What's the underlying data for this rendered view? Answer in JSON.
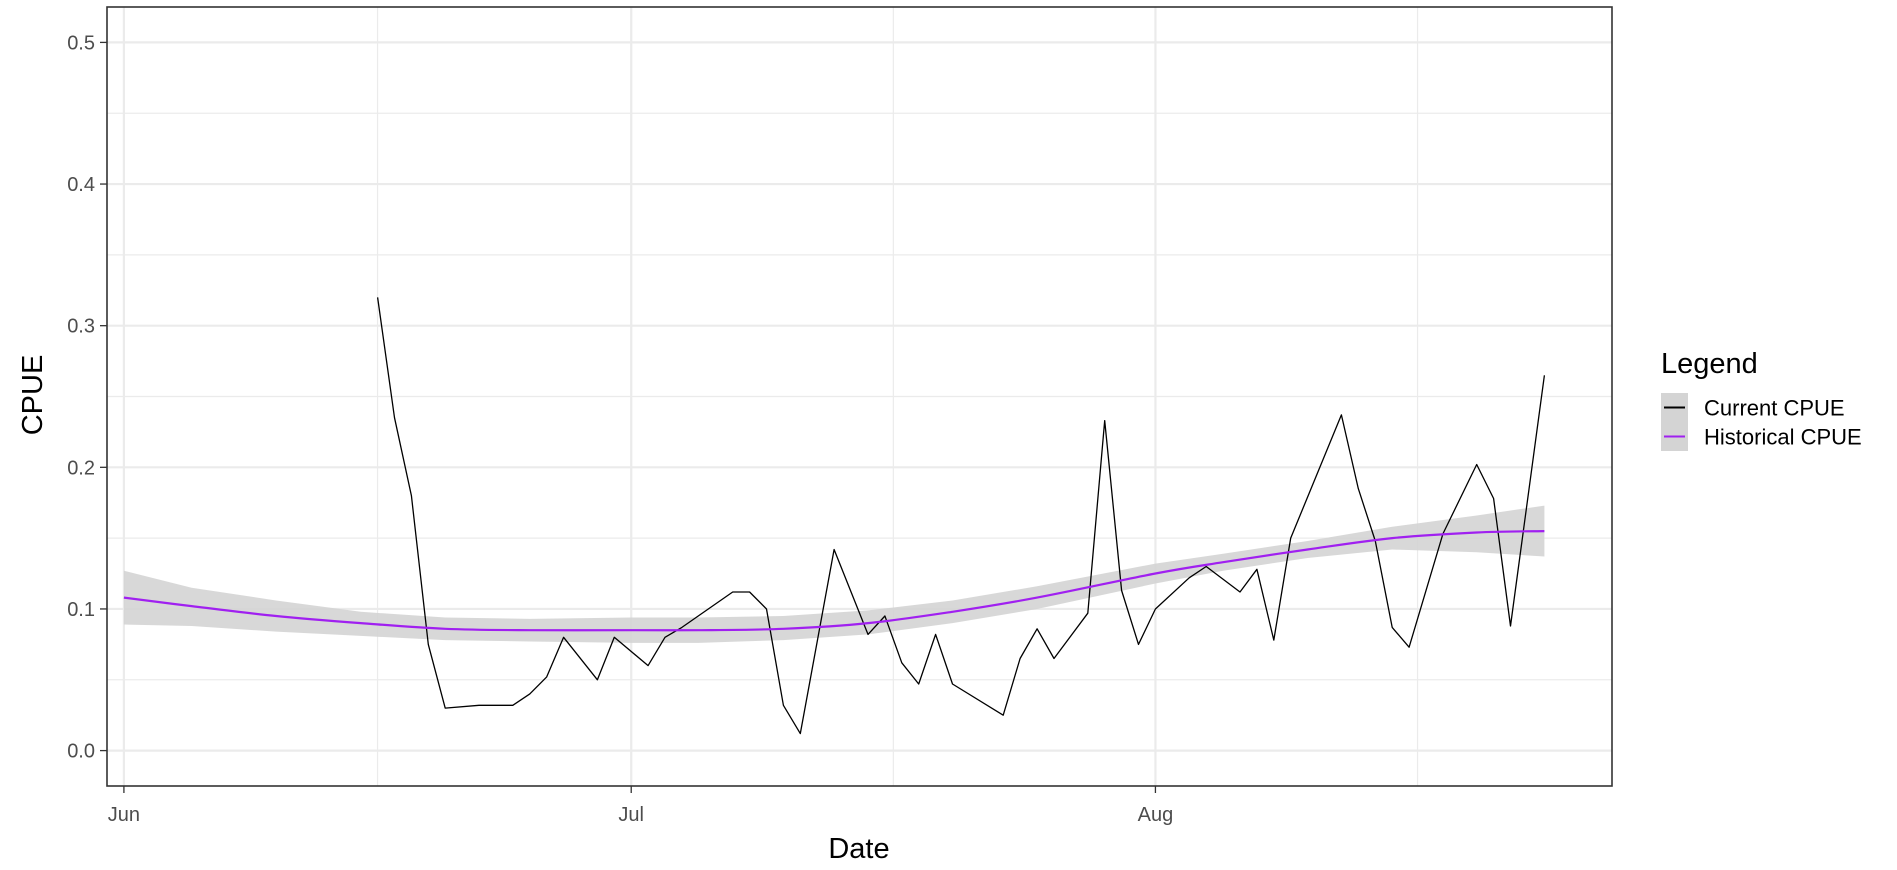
{
  "chart_data": {
    "type": "line",
    "title": "",
    "xlabel": "Date",
    "ylabel": "CPUE",
    "x_type": "date",
    "xlim": [
      "2019-05-31",
      "2019-08-28"
    ],
    "ylim": [
      -0.025,
      0.525
    ],
    "x_ticks": [
      {
        "date": "2019-06-01",
        "label": "Jun"
      },
      {
        "date": "2019-07-01",
        "label": "Jul"
      },
      {
        "date": "2019-08-01",
        "label": "Aug"
      }
    ],
    "y_ticks": [
      0.0,
      0.1,
      0.2,
      0.3,
      0.4,
      0.5
    ],
    "y_tick_labels": [
      "0.0",
      "0.1",
      "0.2",
      "0.3",
      "0.4",
      "0.5"
    ],
    "grid": true,
    "legend": {
      "title": "Legend",
      "placement": "right",
      "entries": [
        "Current CPUE",
        "Historical CPUE"
      ]
    },
    "colors": {
      "current": "#000000",
      "historical": "#a020f0",
      "ribbon": "#d4d4d4",
      "grid": "#ebebeb",
      "panel_border": "#333333"
    },
    "series": [
      {
        "name": "Current CPUE",
        "x": [
          "2019-06-16",
          "2019-06-17",
          "2019-06-18",
          "2019-06-19",
          "2019-06-20",
          "2019-06-22",
          "2019-06-24",
          "2019-06-25",
          "2019-06-26",
          "2019-06-27",
          "2019-06-29",
          "2019-06-30",
          "2019-07-02",
          "2019-07-03",
          "2019-07-04",
          "2019-07-07",
          "2019-07-08",
          "2019-07-09",
          "2019-07-10",
          "2019-07-11",
          "2019-07-13",
          "2019-07-15",
          "2019-07-16",
          "2019-07-17",
          "2019-07-18",
          "2019-07-19",
          "2019-07-20",
          "2019-07-23",
          "2019-07-24",
          "2019-07-25",
          "2019-07-26",
          "2019-07-28",
          "2019-07-29",
          "2019-07-30",
          "2019-07-31",
          "2019-08-01",
          "2019-08-03",
          "2019-08-04",
          "2019-08-06",
          "2019-08-07",
          "2019-08-08",
          "2019-08-09",
          "2019-08-12",
          "2019-08-13",
          "2019-08-14",
          "2019-08-15",
          "2019-08-16",
          "2019-08-18",
          "2019-08-20",
          "2019-08-21",
          "2019-08-22",
          "2019-08-24"
        ],
        "values": [
          0.32,
          0.235,
          0.18,
          0.075,
          0.03,
          0.032,
          0.032,
          0.04,
          0.052,
          0.08,
          0.05,
          0.08,
          0.06,
          0.08,
          0.087,
          0.112,
          0.112,
          0.1,
          0.032,
          0.012,
          0.142,
          0.082,
          0.095,
          0.062,
          0.047,
          0.082,
          0.047,
          0.025,
          0.065,
          0.086,
          0.065,
          0.097,
          0.233,
          0.113,
          0.075,
          0.1,
          0.122,
          0.13,
          0.112,
          0.128,
          0.078,
          0.15,
          0.237,
          0.185,
          0.148,
          0.087,
          0.073,
          0.153,
          0.202,
          0.178,
          0.088,
          0.265
        ]
      },
      {
        "name": "Historical CPUE",
        "x": [
          "2019-06-01",
          "2019-06-05",
          "2019-06-10",
          "2019-06-15",
          "2019-06-20",
          "2019-06-25",
          "2019-07-01",
          "2019-07-05",
          "2019-07-10",
          "2019-07-15",
          "2019-07-20",
          "2019-07-25",
          "2019-08-01",
          "2019-08-05",
          "2019-08-10",
          "2019-08-15",
          "2019-08-20",
          "2019-08-24"
        ],
        "values": [
          0.108,
          0.102,
          0.095,
          0.09,
          0.086,
          0.085,
          0.085,
          0.085,
          0.086,
          0.09,
          0.098,
          0.108,
          0.125,
          0.133,
          0.142,
          0.15,
          0.154,
          0.155
        ],
        "lower": [
          0.089,
          0.088,
          0.084,
          0.081,
          0.078,
          0.077,
          0.076,
          0.076,
          0.078,
          0.082,
          0.09,
          0.1,
          0.118,
          0.127,
          0.136,
          0.142,
          0.14,
          0.137
        ],
        "upper": [
          0.127,
          0.115,
          0.106,
          0.098,
          0.094,
          0.093,
          0.094,
          0.094,
          0.095,
          0.099,
          0.106,
          0.116,
          0.132,
          0.139,
          0.148,
          0.158,
          0.166,
          0.173
        ]
      }
    ]
  }
}
